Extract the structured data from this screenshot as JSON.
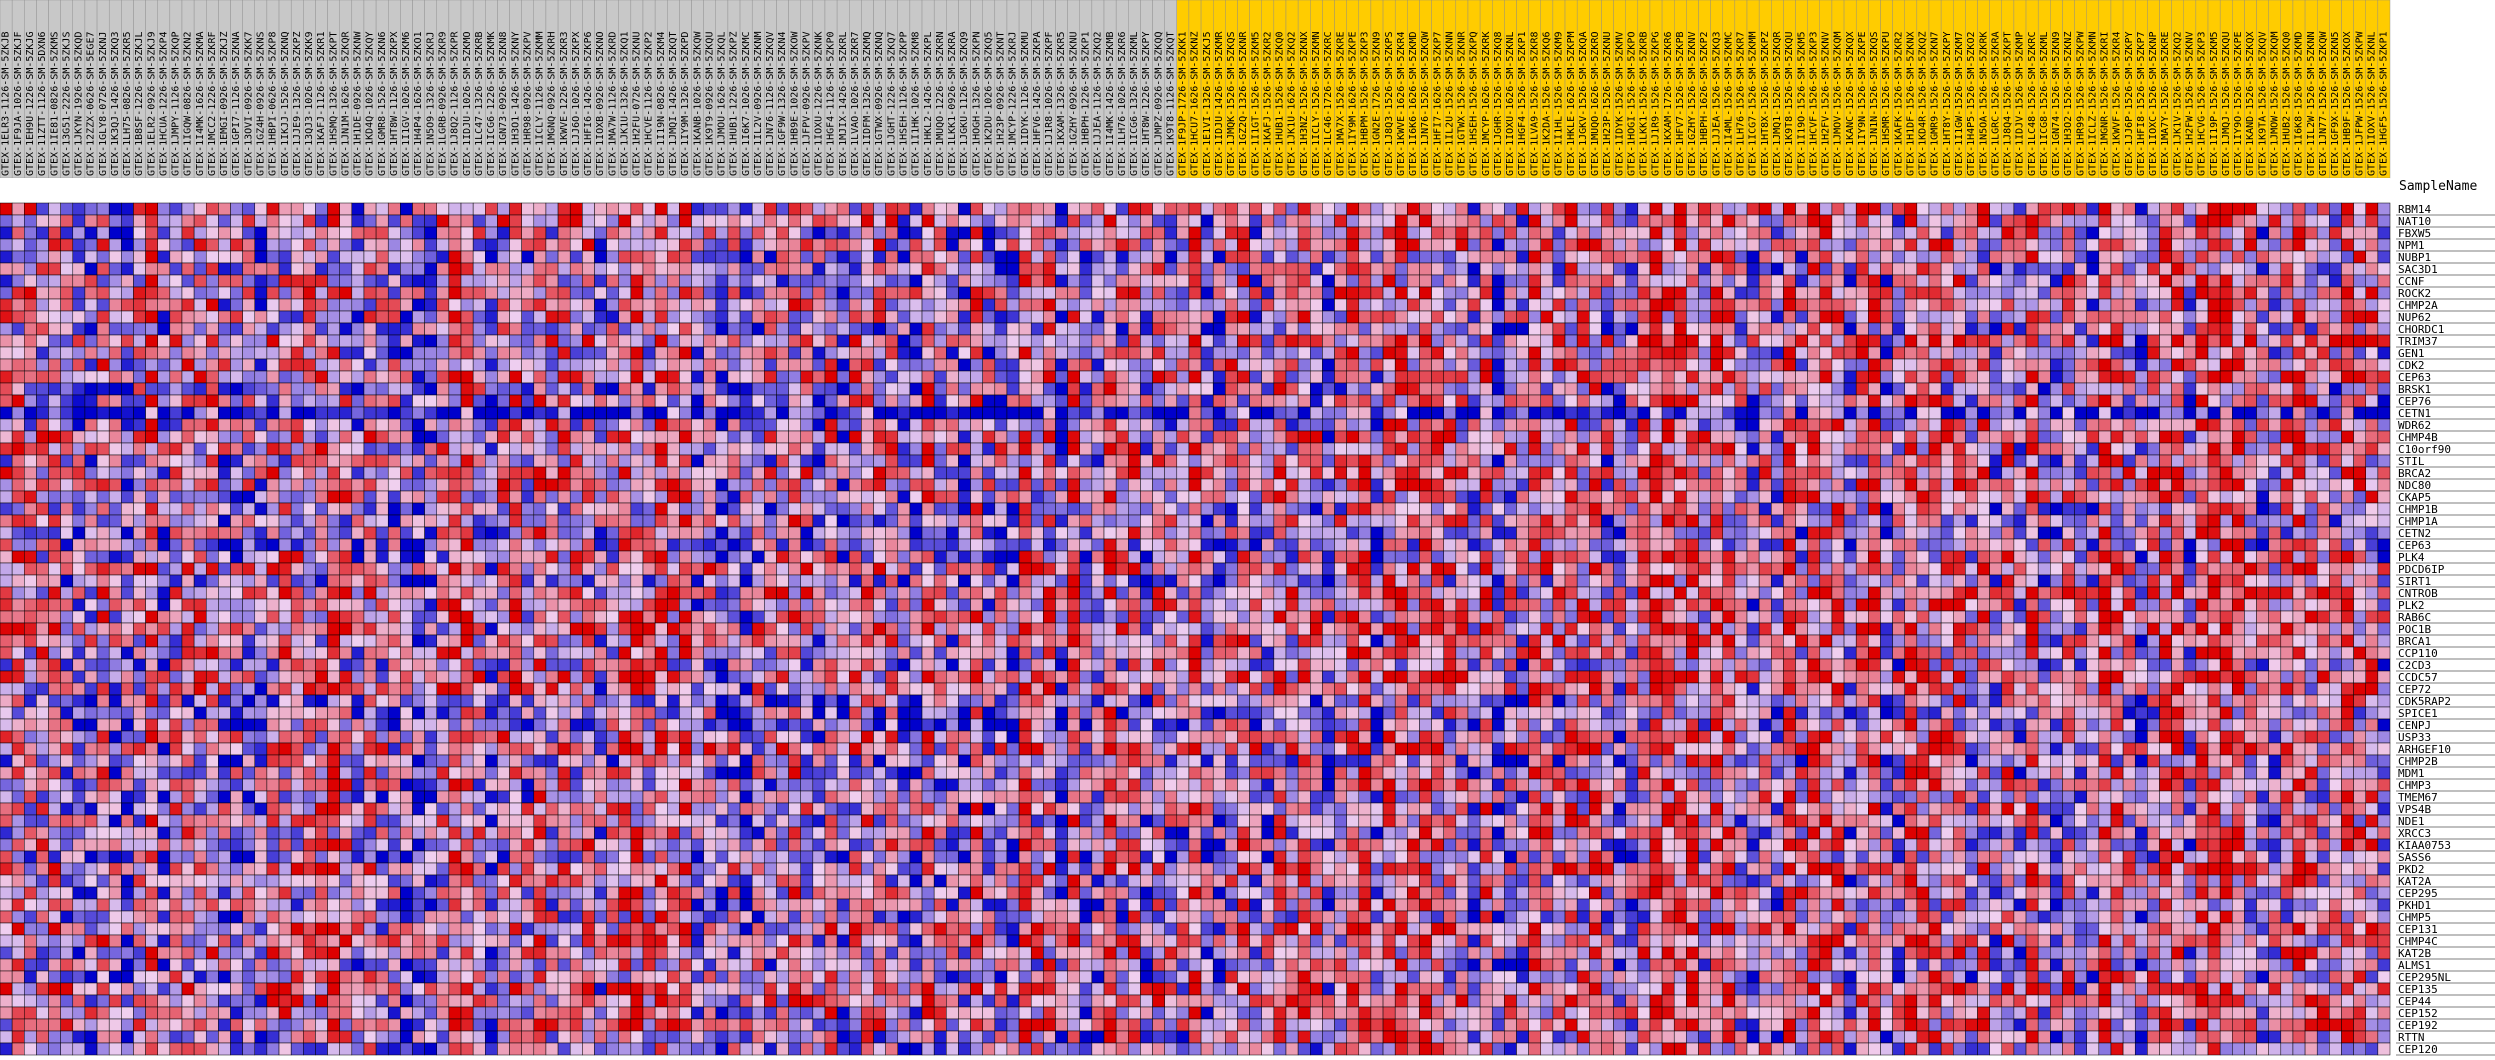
{
  "chart_data": {
    "type": "heatmap",
    "title": "",
    "xlabel": "",
    "ylabel": "",
    "header_label": "SampleName",
    "value_range": [
      -1,
      1
    ],
    "colors": {
      "low": "#0000cc",
      "mid": "#f0d0f0",
      "high": "#dd0000",
      "grid": "#000000",
      "group_a_header": "#c8c8c8",
      "group_b_header": "#ffcc00"
    },
    "sample_groups": [
      {
        "name_shown": "",
        "count": 97,
        "color_key": "group_a_header"
      },
      {
        "name_shown": "",
        "count": 100,
        "color_key": "group_b_header"
      }
    ],
    "samples": [
      "GTEX-1ELR3-1126-SM-5ZKJB",
      "GTEX-1F9JA-1026-SM-5ZKJF",
      "GTEX-1EH9U-1226-SM-5ZKJG",
      "GTEX-11ZTT-1126-SM-5DXN6",
      "GTEX-1IE81-0826-SM-5ZKMS",
      "GTEX-13G51-2226-SM-5ZKJS",
      "GTEX-1JKYN-1926-SM-5ZKQD",
      "GTEX-12ZZX-0626-SM-5EGE7",
      "GTEX-1GLY8-0726-SM-5ZKNJ",
      "GTEX-1K3QJ-1426-SM-5ZKQ3",
      "GTEX-1LH75-0826-SM-5ZKR5",
      "GTEX-1B8SF-1226-SM-5ZKJL",
      "GTEX-1ELR2-0926-SM-5ZKJ9",
      "GTEX-1HCUA-1226-SM-5ZKP4",
      "GTEX-1JMPY-1126-SM-5ZKQP",
      "GTEX-1IGQW-0826-SM-5ZKN2",
      "GTEX-1I4MK-1626-SM-5ZKMA",
      "GTEX-1MCC2-1226-SM-5ZKRF",
      "GTEX-1EMGI-0926-SM-5ZKJZ",
      "GTEX-1GPI7-1126-SM-5ZKNA",
      "GTEX-13OVI-0926-SM-5ZKK7",
      "GTEX-1GZ4H-0926-SM-5ZKNS",
      "GTEX-1HBPI-0626-SM-5ZKP8",
      "GTEX-1IKJJ-1526-SM-5ZKNQ",
      "GTEX-1JJE9-1326-SM-5ZKPZ",
      "GTEX-13QJ3-1026-SM-5ZKK9",
      "GTEX-1KAFJ-1126-SM-5ZKR1",
      "GTEX-1HSMQ-1326-SM-5ZKPT",
      "GTEX-1JN1M-1626-SM-5ZKQR",
      "GTEX-1H1DE-0926-SM-5ZKNW",
      "GTEX-1KD4Q-1026-SM-5ZKQY",
      "GTEX-1GMR8-1526-SM-5ZKN6",
      "GTEX-1HT8W-1126-SM-5ZKPX",
      "GTEX-1I1GV-1026-SM-5ZKM6",
      "GTEX-1H4P4-1626-SM-5ZKO1",
      "GTEX-1N5O9-1326-SM-5ZKRJ",
      "GTEX-1LGRB-0926-SM-5ZKR9",
      "GTEX-1J8Q2-1126-SM-5ZKPR",
      "GTEX-1IDJU-1026-SM-5ZKMO",
      "GTEX-1LC47-1326-SM-5ZKRB",
      "GTEX-1ICG6-1226-SM-5ZKMK",
      "GTEX-1GN73-0926-SM-5ZKN8",
      "GTEX-1H3O1-1426-SM-5ZKNY",
      "GTEX-1HR98-0926-SM-5ZKPV",
      "GTEX-1ICLY-1126-SM-5ZKMM",
      "GTEX-1MGNQ-0926-SM-5ZKRH",
      "GTEX-1KWVE-1226-SM-5ZKR3",
      "GTEX-1JJ6O-1026-SM-5ZKPX",
      "GTEX-1HFI6-1426-SM-5ZKP6",
      "GTEX-1IOXB-0926-SM-5ZKNO",
      "GTEX-1MA7W-1126-SM-5ZKRD",
      "GTEX-1JK1U-1326-SM-5ZKQ1",
      "GTEX-1H2FU-0726-SM-5ZKNU",
      "GTEX-1HCVE-1126-SM-5ZKP2",
      "GTEX-1I19N-0826-SM-5ZKM4",
      "GTEX-1JMQI-1426-SM-5ZKQT",
      "GTEX-1IY9M-1326-SM-5ZKPD",
      "GTEX-1KANB-1026-SM-5ZKQW",
      "GTEX-1K9T9-0926-SM-5ZKQU",
      "GTEX-1JMOU-1626-SM-5ZKQL",
      "GTEX-1HUB1-1226-SM-5ZKPZ",
      "GTEX-1I6K7-1026-SM-5ZKMC",
      "GTEX-1IL2V-0926-SM-5ZKNM",
      "GTEX-1JN76-1126-SM-5ZKQV",
      "GTEX-1GF9W-1326-SM-5ZKN4",
      "GTEX-1HB9E-1026-SM-5ZKOW",
      "GTEX-1JFPV-0926-SM-5ZKPV",
      "GTEX-1IOXU-1226-SM-5ZKNK",
      "GTEX-1HGF4-1126-SM-5ZKP0",
      "GTEX-1MJIX-1426-SM-5ZKRL",
      "GTEX-1LVAO-1026-SM-5ZKR7",
      "GTEX-1IDFM-1326-SM-5ZKMQ",
      "GTEX-1GTWX-0926-SM-5ZKNQ",
      "GTEX-1JGHT-1226-SM-5ZKQ7",
      "GTEX-1HSEH-1126-SM-5ZKPP",
      "GTEX-1I1HK-1026-SM-5ZKM8",
      "GTEX-1HKL2-1426-SM-5ZKPL",
      "GTEX-1MUQO-1226-SM-5ZKRN",
      "GTEX-1LKK1-0926-SM-5ZKRA",
      "GTEX-1JGKU-1126-SM-5ZKQ9",
      "GTEX-1HOGH-1326-SM-5ZKPN",
      "GTEX-1K2DU-1026-SM-5ZKQ5",
      "GTEX-1H23P-0926-SM-5ZKNT",
      "GTEX-1MCYP-1226-SM-5ZKRJ",
      "GTEX-1IDYK-1126-SM-5ZKMU",
      "GTEX-1HFV6-1426-SM-5ZKPA",
      "GTEX-1J1R8-1026-SM-5ZKPF",
      "GTEX-1KXAM-1326-SM-5ZKR5",
      "GTEX-1GZHY-0926-SM-5ZKNU",
      "GTEX-1HBPH-1226-SM-5ZKP1",
      "GTEX-1JJEA-1126-SM-5ZKQ2",
      "GTEX-1I4MK-1426-SM-5ZKMB",
      "GTEX-1LH76-1026-SM-5ZKR6",
      "GTEX-1ICG6-1326-SM-5ZKML",
      "GTEX-1HT8W-1226-SM-5ZKPY",
      "GTEX-1JMPZ-0926-SM-5ZKQQ",
      "GTEX-1K9T8-1126-SM-5ZKQT",
      "GTEX-1F9JP-1726-SM-5ZKK1",
      "GTEX-1HCU7-1626-SM-5ZKNZ",
      "GTEX-1E1VI-1326-SM-5ZKJ5",
      "GTEX-1IDJU-1426-SM-5ZKMR",
      "GTEX-1JMQK-1526-SM-5ZKQS",
      "GTEX-1GZ2Q-1326-SM-5ZKNR",
      "GTEX-1I1GT-1526-SM-5ZKM5",
      "GTEX-1KAFJ-1526-SM-5ZKR2",
      "GTEX-1HUB1-1526-SM-5ZKQ0",
      "GTEX-1JK1U-1626-SM-5ZKQ2",
      "GTEX-1H3NZ-1526-SM-5ZKNX",
      "GTEX-1ICLY-1526-SM-5ZKMN",
      "GTEX-1LC46-1726-SM-5ZKRC",
      "GTEX-1MA7X-1526-SM-5ZKRE",
      "GTEX-1IY9M-1626-SM-5ZKPE",
      "GTEX-1HBPM-1526-SM-5ZKP3",
      "GTEX-1GN2E-1726-SM-5ZKN9",
      "GTEX-1J8Q3-1526-SM-5ZKPS",
      "GTEX-1KWVE-1626-SM-5ZKR4",
      "GTEX-1I6K6-1626-SM-5ZKMD",
      "GTEX-1JN76-1526-SM-5ZKQW",
      "GTEX-1HFI7-1626-SM-5ZKP7",
      "GTEX-1IL2U-1526-SM-5ZKNN",
      "GTEX-1GTWX-1526-SM-5ZKNR",
      "GTEX-1HSEH-1526-SM-5ZKPQ",
      "GTEX-1MCYP-1626-SM-5ZKRK",
      "GTEX-1JGHR-1526-SM-5ZKQ8",
      "GTEX-1IOXU-1626-SM-5ZKNL",
      "GTEX-1HGF4-1526-SM-5ZKP1",
      "GTEX-1LVA9-1526-SM-5ZKR8",
      "GTEX-1K2DA-1526-SM-5ZKQ6",
      "GTEX-1I1HL-1526-SM-5ZKM9",
      "GTEX-1HKLE-1626-SM-5ZKPM",
      "GTEX-1JGKV-1526-SM-5ZKQA",
      "GTEX-1MUQO-1626-SM-5ZKRO",
      "GTEX-1H23P-1526-SM-5ZKNU",
      "GTEX-1IDYK-1526-SM-5ZKMV",
      "GTEX-1HOGI-1526-SM-5ZKPO",
      "GTEX-1LKK1-1526-SM-5ZKRB",
      "GTEX-1J1R9-1526-SM-5ZKPG",
      "GTEX-1KXAM-1726-SM-5ZKR6",
      "GTEX-1HFV7-1526-SM-5ZKPB",
      "GTEX-1GZHY-1526-SM-5ZKNV",
      "GTEX-1HBPH-1626-SM-5ZKP2",
      "GTEX-1JJEA-1526-SM-5ZKQ3",
      "GTEX-1I4ML-1526-SM-5ZKMC",
      "GTEX-1LH76-1526-SM-5ZKR7",
      "GTEX-1ICG7-1526-SM-5ZKMM",
      "GTEX-1HT8X-1526-SM-5ZKPZ",
      "GTEX-1JMQ1-1526-SM-5ZKQR",
      "GTEX-1K9T8-1526-SM-5ZKQU",
      "GTEX-1I19O-1526-SM-5ZKM5",
      "GTEX-1HCVF-1526-SM-5ZKP3",
      "GTEX-1H2FV-1526-SM-5ZKNV",
      "GTEX-1JMOV-1526-SM-5ZKQM",
      "GTEX-1KANC-1526-SM-5ZKQX",
      "GTEX-1IY9N-1526-SM-5ZKPE",
      "GTEX-1JN1N-1526-SM-5ZKQS",
      "GTEX-1HSMR-1526-SM-5ZKPU",
      "GTEX-1KAFK-1526-SM-5ZKR2",
      "GTEX-1H1DF-1526-SM-5ZKNX",
      "GTEX-1KD4R-1526-SM-5ZKQZ",
      "GTEX-1GMR9-1526-SM-5ZKN7",
      "GTEX-1HT8Y-1526-SM-5ZKPY",
      "GTEX-1I1GW-1526-SM-5ZKM7",
      "GTEX-1H4P5-1526-SM-5ZKO2",
      "GTEX-1N5OA-1526-SM-5ZKRK",
      "GTEX-1LGRC-1526-SM-5ZKRA",
      "GTEX-1J8Q4-1526-SM-5ZKPT",
      "GTEX-1IDJV-1526-SM-5ZKMP",
      "GTEX-1LC48-1526-SM-5ZKRC",
      "GTEX-1ICG8-1526-SM-5ZKML",
      "GTEX-1GN74-1526-SM-5ZKN9",
      "GTEX-1H3O2-1526-SM-5ZKNZ",
      "GTEX-1HR99-1526-SM-5ZKPW",
      "GTEX-1ICLZ-1526-SM-5ZKMN",
      "GTEX-1MGNR-1526-SM-5ZKRI",
      "GTEX-1KWVF-1526-SM-5ZKR4",
      "GTEX-1JJ6P-1526-SM-5ZKPY",
      "GTEX-1HFI8-1526-SM-5ZKP7",
      "GTEX-1IOXC-1526-SM-5ZKNP",
      "GTEX-1MA7Y-1526-SM-5ZKRE",
      "GTEX-1JK1V-1526-SM-5ZKQ2",
      "GTEX-1H2FW-1526-SM-5ZKNV",
      "GTEX-1HCVG-1526-SM-5ZKP3",
      "GTEX-1I19P-1526-SM-5ZKM5",
      "GTEX-1JMQJ-1526-SM-5ZKQU",
      "GTEX-1IY9O-1526-SM-5ZKPE",
      "GTEX-1KAND-1526-SM-5ZKQX",
      "GTEX-1K9TA-1526-SM-5ZKQV",
      "GTEX-1JMOW-1526-SM-5ZKQM",
      "GTEX-1HUB2-1526-SM-5ZKQ0",
      "GTEX-1I6K8-1526-SM-5ZKMD",
      "GTEX-1IL2W-1526-SM-5ZKNN",
      "GTEX-1JN77-1526-SM-5ZKQW",
      "GTEX-1GF9X-1526-SM-5ZKN5",
      "GTEX-1HB9F-1526-SM-5ZKOX",
      "GTEX-1JFPW-1526-SM-5ZKPW",
      "GTEX-1IOXV-1526-SM-5ZKNL",
      "GTEX-1HGF5-1526-SM-5ZKP1"
    ],
    "genes": [
      "RBM14",
      "NAT10",
      "FBXW5",
      "NPM1",
      "NUBP1",
      "SAC3D1",
      "CCNF",
      "ROCK2",
      "CHMP2A",
      "NUP62",
      "CHORDC1",
      "TRIM37",
      "GEN1",
      "CDK2",
      "CEP63",
      "BRSK1",
      "CEP76",
      "CETN1",
      "WDR62",
      "CHMP4B",
      "C10orf90",
      "STIL",
      "BRCA2",
      "NDC80",
      "CKAP5",
      "CHMP1B",
      "CHMP1A",
      "CETN2",
      "CEP63",
      "PLK4",
      "PDCD6IP",
      "SIRT1",
      "CNTROB",
      "PLK2",
      "RAB6C",
      "POC1B",
      "BRCA1",
      "CCP110",
      "C2CD3",
      "CCDC57",
      "CEP72",
      "CDK5RAP2",
      "SPICE1",
      "CENPJ",
      "USP33",
      "ARHGEF10",
      "CHMP2B",
      "MDM1",
      "CHMP3",
      "TMEM67",
      "VPS4B",
      "NDE1",
      "XRCC3",
      "KIAA0753",
      "SASS6",
      "PKD2",
      "KAT2A",
      "CEP295",
      "PKHD1",
      "CHMP5",
      "CEP131",
      "CHMP4C",
      "KAT2B",
      "ALMS1",
      "CEP295NL",
      "CEP135",
      "CEP44",
      "CEP152",
      "CEP192",
      "RTTN",
      "CEP120"
    ],
    "value_seed": 20240611,
    "value_note_shown": ""
  }
}
